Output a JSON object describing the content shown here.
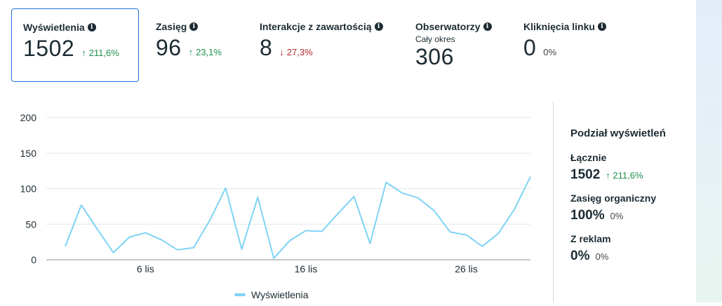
{
  "metrics": [
    {
      "label": "Wyświetlenia",
      "value": "1502",
      "delta": "211,6%",
      "dir": "up",
      "selected": true
    },
    {
      "label": "Zasięg",
      "value": "96",
      "delta": "23,1%",
      "dir": "up"
    },
    {
      "label": "Interakcje z zawartością",
      "value": "8",
      "delta": "27,3%",
      "dir": "down"
    },
    {
      "label": "Obserwatorzy",
      "sub": "Cały okres",
      "value": "306"
    },
    {
      "label": "Kliknięcia linku",
      "value": "0",
      "delta": "0%",
      "dir": "neutral"
    }
  ],
  "arrows": {
    "up": "↑",
    "down": "↓"
  },
  "icons": {
    "info": "info-icon"
  },
  "colors": {
    "accent": "#1f6fd9",
    "line": "#7fd3f5",
    "positive": "#1f8f4d",
    "negative": "#b3262d"
  },
  "chart_data": {
    "type": "line",
    "title": "",
    "xlabel": "",
    "ylabel": "",
    "x": [
      1,
      2,
      3,
      4,
      5,
      6,
      7,
      8,
      9,
      10,
      11,
      12,
      13,
      14,
      15,
      16,
      17,
      18,
      19,
      20,
      21,
      22,
      23,
      24,
      25,
      26,
      27,
      28,
      29,
      30
    ],
    "x_tick_values": [
      6,
      16,
      26
    ],
    "x_tick_labels": [
      "6 lis",
      "16 lis",
      "26 lis"
    ],
    "y_ticks": [
      0,
      50,
      100,
      150,
      200
    ],
    "ylim": [
      0,
      200
    ],
    "xlim": [
      1,
      30
    ],
    "grid": true,
    "series": [
      {
        "name": "Wyświetlenia",
        "values": [
          19,
          77,
          43,
          10,
          32,
          38,
          28,
          14,
          17,
          55,
          101,
          15,
          88,
          2,
          27,
          41,
          40,
          65,
          89,
          23,
          109,
          94,
          87,
          69,
          39,
          35,
          19,
          37,
          71,
          117
        ]
      }
    ],
    "legend_position": "bottom-center"
  },
  "side": {
    "title": "Podział wyświetleń",
    "items": [
      {
        "label": "Łącznie",
        "value": "1502",
        "delta": "211,6%",
        "dir": "up"
      },
      {
        "label": "Zasięg organiczny",
        "value": "100%",
        "delta": "0%",
        "dir": "neutral"
      },
      {
        "label": "Z reklam",
        "value": "0%",
        "delta": "0%",
        "dir": "neutral"
      }
    ]
  },
  "legend": {
    "label": "Wyświetlenia"
  }
}
